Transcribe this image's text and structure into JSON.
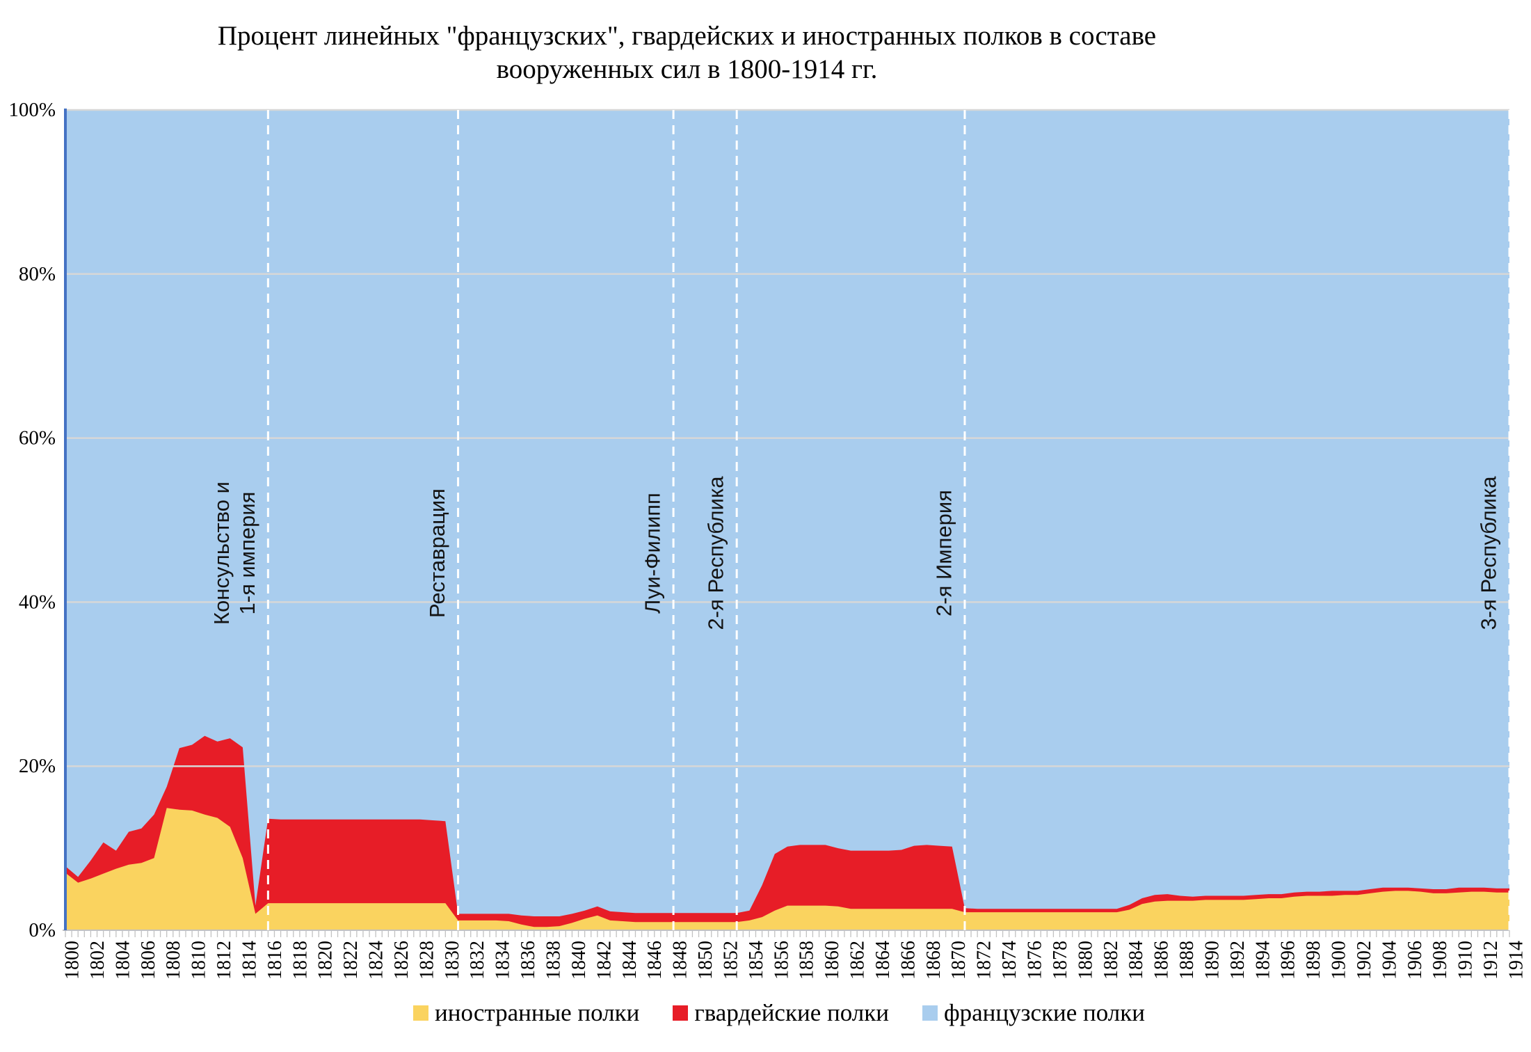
{
  "title": {
    "line1": "Процент линейных \"французских\", гвардейских и иностранных полков в составе",
    "line2": "вооруженных сил в 1800-1914 гг."
  },
  "legend": {
    "items": [
      {
        "label": "иностранные полки",
        "color": "#FAD35F"
      },
      {
        "label": "гвардейские полки",
        "color": "#E71D27"
      },
      {
        "label": "французские полки",
        "color": "#A9CDEE"
      }
    ]
  },
  "chart_data": {
    "type": "area",
    "stacked": true,
    "unit": "%",
    "title": "Процент линейных \"французских\", гвардейских и иностранных полков в составе вооруженных сил в 1800-1914 гг.",
    "years": [
      1800,
      1801,
      1802,
      1803,
      1804,
      1805,
      1806,
      1807,
      1808,
      1809,
      1810,
      1811,
      1812,
      1813,
      1814,
      1815,
      1816,
      1817,
      1818,
      1819,
      1820,
      1821,
      1822,
      1823,
      1824,
      1825,
      1826,
      1827,
      1828,
      1829,
      1830,
      1831,
      1832,
      1833,
      1834,
      1835,
      1836,
      1837,
      1838,
      1839,
      1840,
      1841,
      1842,
      1843,
      1844,
      1845,
      1846,
      1847,
      1848,
      1849,
      1850,
      1851,
      1852,
      1853,
      1854,
      1855,
      1856,
      1857,
      1858,
      1859,
      1860,
      1861,
      1862,
      1863,
      1864,
      1865,
      1866,
      1867,
      1868,
      1869,
      1870,
      1871,
      1872,
      1873,
      1874,
      1875,
      1876,
      1877,
      1878,
      1879,
      1880,
      1881,
      1882,
      1883,
      1884,
      1885,
      1886,
      1887,
      1888,
      1889,
      1890,
      1891,
      1892,
      1893,
      1894,
      1895,
      1896,
      1897,
      1898,
      1899,
      1900,
      1901,
      1902,
      1903,
      1904,
      1905,
      1906,
      1907,
      1908,
      1909,
      1910,
      1911,
      1912,
      1913,
      1914
    ],
    "x_label_every_years": 2,
    "series": [
      {
        "name": "иностранные полки",
        "color": "#FAD35F",
        "values": [
          7.0,
          5.8,
          6.3,
          6.9,
          7.5,
          8.0,
          8.2,
          8.8,
          14.9,
          14.7,
          14.6,
          14.1,
          13.7,
          12.6,
          8.8,
          2.0,
          3.3,
          3.3,
          3.3,
          3.3,
          3.3,
          3.3,
          3.3,
          3.3,
          3.3,
          3.3,
          3.3,
          3.3,
          3.3,
          3.3,
          3.3,
          1.2,
          1.2,
          1.2,
          1.2,
          1.1,
          0.7,
          0.4,
          0.4,
          0.5,
          0.9,
          1.4,
          1.8,
          1.2,
          1.1,
          1.0,
          1.0,
          1.0,
          1.0,
          1.0,
          1.0,
          1.0,
          1.0,
          1.0,
          1.2,
          1.6,
          2.4,
          3.0,
          3.0,
          3.0,
          3.0,
          2.9,
          2.6,
          2.6,
          2.6,
          2.6,
          2.6,
          2.6,
          2.6,
          2.6,
          2.6,
          2.2,
          2.2,
          2.2,
          2.2,
          2.2,
          2.2,
          2.2,
          2.2,
          2.2,
          2.2,
          2.2,
          2.2,
          2.2,
          2.5,
          3.2,
          3.5,
          3.6,
          3.6,
          3.6,
          3.7,
          3.7,
          3.7,
          3.7,
          3.8,
          3.9,
          3.9,
          4.1,
          4.2,
          4.2,
          4.2,
          4.3,
          4.3,
          4.5,
          4.7,
          4.8,
          4.8,
          4.7,
          4.5,
          4.5,
          4.6,
          4.7,
          4.7,
          4.6,
          4.6
        ]
      },
      {
        "name": "гвардейские полки",
        "color": "#E71D27",
        "values": [
          0.8,
          0.7,
          2.2,
          3.8,
          2.2,
          4.0,
          4.2,
          5.3,
          2.6,
          7.5,
          8.0,
          9.6,
          9.3,
          10.8,
          13.5,
          1.0,
          10.3,
          10.2,
          10.2,
          10.2,
          10.2,
          10.2,
          10.2,
          10.2,
          10.2,
          10.2,
          10.2,
          10.2,
          10.2,
          10.1,
          10.0,
          0.8,
          0.8,
          0.8,
          0.8,
          0.9,
          1.1,
          1.3,
          1.3,
          1.2,
          1.1,
          1.0,
          1.1,
          1.1,
          1.1,
          1.1,
          1.1,
          1.1,
          1.1,
          1.1,
          1.1,
          1.1,
          1.1,
          1.1,
          1.2,
          3.9,
          6.9,
          7.2,
          7.4,
          7.4,
          7.4,
          7.1,
          7.1,
          7.1,
          7.1,
          7.1,
          7.2,
          7.7,
          7.8,
          7.7,
          7.6,
          0.5,
          0.4,
          0.4,
          0.4,
          0.4,
          0.4,
          0.4,
          0.4,
          0.4,
          0.4,
          0.4,
          0.4,
          0.4,
          0.6,
          0.7,
          0.8,
          0.8,
          0.6,
          0.5,
          0.5,
          0.5,
          0.5,
          0.5,
          0.5,
          0.5,
          0.5,
          0.5,
          0.5,
          0.5,
          0.6,
          0.5,
          0.5,
          0.5,
          0.5,
          0.4,
          0.4,
          0.4,
          0.5,
          0.5,
          0.6,
          0.5,
          0.5,
          0.5,
          0.5
        ]
      },
      {
        "name": "французские полки",
        "color": "#A9CDEE",
        "values_are_remainder_to_100": true
      }
    ],
    "y_axis": {
      "min": 0,
      "max": 100,
      "ticks": [
        0,
        20,
        40,
        60,
        80,
        100
      ],
      "tick_labels": [
        "0%",
        "20%",
        "40%",
        "60%",
        "80%",
        "100%"
      ],
      "grid": true
    },
    "period_markers": [
      {
        "lines": [
          "Консульство и",
          "1-я империя"
        ],
        "year": 1816
      },
      {
        "lines": [
          "Реставрация"
        ],
        "year": 1831
      },
      {
        "lines": [
          "Луи-Филипп"
        ],
        "year": 1848
      },
      {
        "lines": [
          "2-я Республика"
        ],
        "year": 1853
      },
      {
        "lines": [
          "2-я Империя"
        ],
        "year": 1871
      },
      {
        "lines": [
          "3-я Республика"
        ],
        "year": 1914
      }
    ],
    "colors": {
      "axis_line": "#4472C4",
      "gridline": "#D7D7D7",
      "tick": "#C2C2C2",
      "marker_line": "#FFFFFF"
    }
  }
}
